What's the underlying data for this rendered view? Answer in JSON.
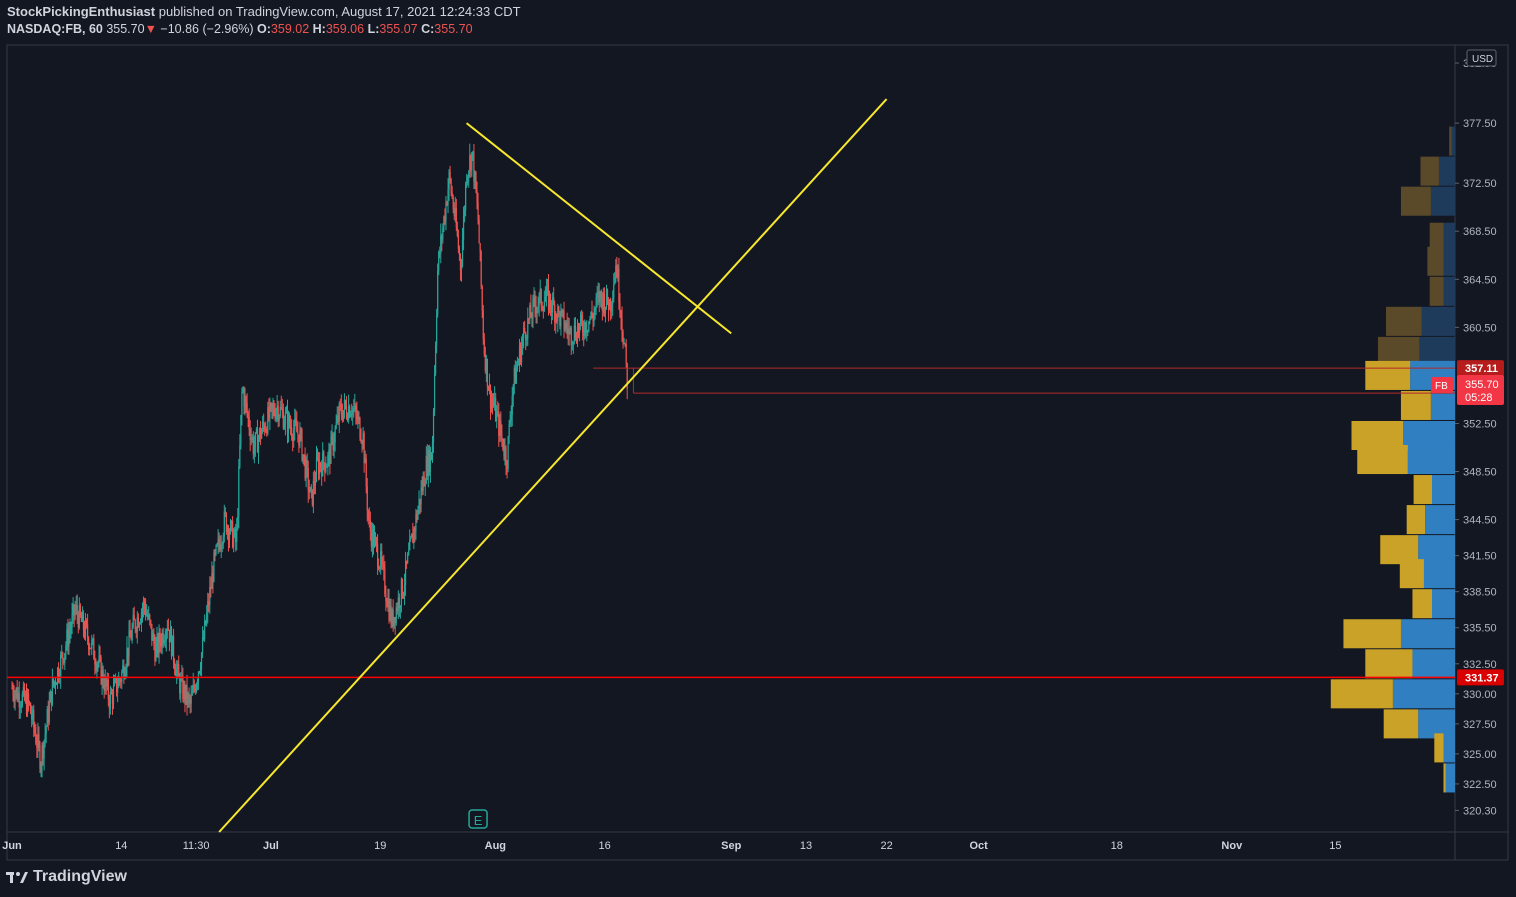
{
  "header": {
    "author": "StockPickingEnthusiast",
    "published_text": "published on TradingView.com, August 17, 2021 12:24:33 CDT",
    "symbol": "NASDAQ:FB, 60",
    "last": "355.70",
    "change": "−10.86 (−2.96%)",
    "change_arrow": "▼",
    "open_label": "O:",
    "open": "359.02",
    "high_label": "H:",
    "high": "359.06",
    "low_label": "L:",
    "low": "355.07",
    "close_label": "C:",
    "close": "355.70"
  },
  "footer": {
    "brand": "TradingView"
  },
  "chart_data": {
    "type": "candlestick",
    "currency": "USD",
    "ylim": [
      318.5,
      384.0
    ],
    "price_ticks": [
      382.5,
      377.5,
      372.5,
      368.5,
      364.5,
      360.5,
      352.5,
      348.5,
      344.5,
      341.5,
      338.5,
      335.5,
      332.5,
      330.0,
      327.5,
      325.0,
      322.5,
      320.3
    ],
    "price_tick_labels": [
      "382.50",
      "377.50",
      "372.50",
      "368.50",
      "364.50",
      "360.50",
      "352.50",
      "348.50",
      "344.50",
      "341.50",
      "338.50",
      "335.50",
      "332.50",
      "330.00",
      "327.50",
      "325.00",
      "322.50",
      "320.30"
    ],
    "time_labels": [
      "Jun",
      "14",
      "11:30",
      "Jul",
      "19",
      "Aug",
      "16",
      "Sep",
      "13",
      "22",
      "Oct",
      "18",
      "Nov",
      "15"
    ],
    "time_label_index": [
      0,
      9.5,
      16,
      22.5,
      32,
      42,
      51.5,
      62.5,
      69,
      76,
      84,
      96,
      106,
      115
    ],
    "x_span_days": 120,
    "last_bar_index": 53,
    "price_path": [
      [
        0,
        330.5
      ],
      [
        1.5,
        329.0
      ],
      [
        2.5,
        324.5
      ],
      [
        3.5,
        330.5
      ],
      [
        4.5,
        333.5
      ],
      [
        5.5,
        337.0
      ],
      [
        6.5,
        335.0
      ],
      [
        7.5,
        332.5
      ],
      [
        8.5,
        329.5
      ],
      [
        9.5,
        331.5
      ],
      [
        10.5,
        335.5
      ],
      [
        11.5,
        337.5
      ],
      [
        12.5,
        333.5
      ],
      [
        13.5,
        336.0
      ],
      [
        14.5,
        331.0
      ],
      [
        15.5,
        329.0
      ],
      [
        16.5,
        333.5
      ],
      [
        17.5,
        340.5
      ],
      [
        18.5,
        344.5
      ],
      [
        19.5,
        342.5
      ],
      [
        20.0,
        355.5
      ],
      [
        21.0,
        350.5
      ],
      [
        22.0,
        352.5
      ],
      [
        23.0,
        354.0
      ],
      [
        24.0,
        352.5
      ],
      [
        25.0,
        351.5
      ],
      [
        26.0,
        346.0
      ],
      [
        26.5,
        349.0
      ],
      [
        27.5,
        349.5
      ],
      [
        28.5,
        353.5
      ],
      [
        29.5,
        354.0
      ],
      [
        30.5,
        351.5
      ],
      [
        31.0,
        344.0
      ],
      [
        32.0,
        341.0
      ],
      [
        33.0,
        336.0
      ],
      [
        34.0,
        339.0
      ],
      [
        35.0,
        344.0
      ],
      [
        36.0,
        349.0
      ],
      [
        36.5,
        350.0
      ],
      [
        37.0,
        365.5
      ],
      [
        38.0,
        373.0
      ],
      [
        38.5,
        369.5
      ],
      [
        39.0,
        365.5
      ],
      [
        39.5,
        373.5
      ],
      [
        40.0,
        375.0
      ],
      [
        40.5,
        369.5
      ],
      [
        41.0,
        359.0
      ],
      [
        41.5,
        355.0
      ],
      [
        42.0,
        353.5
      ],
      [
        42.5,
        351.5
      ],
      [
        43.0,
        349.5
      ],
      [
        43.5,
        355.5
      ],
      [
        44.5,
        360.0
      ],
      [
        45.5,
        362.5
      ],
      [
        46.5,
        363.0
      ],
      [
        47.5,
        361.5
      ],
      [
        48.5,
        360.0
      ],
      [
        49.5,
        360.5
      ],
      [
        50.5,
        361.5
      ],
      [
        51.0,
        363.0
      ],
      [
        52.0,
        362.5
      ],
      [
        52.5,
        366.0
      ],
      [
        53.0,
        361.0
      ],
      [
        53.5,
        355.7
      ]
    ],
    "candle_color_up": "#26a69a",
    "candle_color_down": "#ef5350",
    "horizontal_lines": [
      {
        "price": 331.37,
        "label": "331.37",
        "color": "#ff0000"
      }
    ],
    "range_lines": [
      {
        "price": 357.11,
        "label": "357.11",
        "from_index": 50.5
      },
      {
        "price": 355.03,
        "label": "355.03",
        "from_index": 54
      }
    ],
    "trend_lines": [
      {
        "from": [
          39.5,
          377.5
        ],
        "to": [
          62.5,
          360.0
        ],
        "color": "#f7e72d"
      },
      {
        "from": [
          18.0,
          318.5
        ],
        "to": [
          76.0,
          379.5
        ],
        "color": "#f7e72d"
      }
    ],
    "last_price_tag": {
      "symbol": "FB",
      "price": "355.70",
      "countdown": "05:28",
      "value": 355.7,
      "color": "#f23645"
    },
    "earnings_marker": {
      "label": "E",
      "index": 40.5
    },
    "volume_profile": [
      {
        "price": 376.0,
        "up": 0.2,
        "down": 0.3
      },
      {
        "price": 373.5,
        "up": 1.6,
        "down": 1.4
      },
      {
        "price": 371.0,
        "up": 2.6,
        "down": 2.1
      },
      {
        "price": 368.0,
        "up": 1.2,
        "down": 1.0
      },
      {
        "price": 366.0,
        "up": 1.4,
        "down": 1.0
      },
      {
        "price": 363.5,
        "up": 1.2,
        "down": 1.0
      },
      {
        "price": 361.0,
        "up": 3.1,
        "down": 2.9
      },
      {
        "price": 358.5,
        "up": 3.6,
        "down": 3.1
      },
      {
        "price": 356.5,
        "up": 3.9,
        "down": 3.9
      },
      {
        "price": 354.0,
        "up": 2.6,
        "down": 2.1
      },
      {
        "price": 351.5,
        "up": 4.5,
        "down": 4.5
      },
      {
        "price": 349.5,
        "up": 4.4,
        "down": 4.1
      },
      {
        "price": 347.0,
        "up": 1.6,
        "down": 2.0
      },
      {
        "price": 344.5,
        "up": 1.6,
        "down": 2.6
      },
      {
        "price": 342.0,
        "up": 3.3,
        "down": 3.2
      },
      {
        "price": 340.0,
        "up": 2.1,
        "down": 2.7
      },
      {
        "price": 337.5,
        "up": 1.7,
        "down": 2.0
      },
      {
        "price": 335.0,
        "up": 5.0,
        "down": 4.7
      },
      {
        "price": 332.5,
        "up": 4.1,
        "down": 3.7
      },
      {
        "price": 330.0,
        "up": 5.4,
        "down": 5.4
      },
      {
        "price": 327.5,
        "up": 3.0,
        "down": 3.2
      },
      {
        "price": 325.5,
        "up": 0.8,
        "down": 1.0
      },
      {
        "price": 323.0,
        "up": 0.2,
        "down": 0.8
      }
    ],
    "volume_profile_colors": {
      "up": "#c9a227",
      "down": "#2f7fc1",
      "up_dim": "#5a4a2a",
      "down_dim": "#1f3b5c"
    }
  }
}
